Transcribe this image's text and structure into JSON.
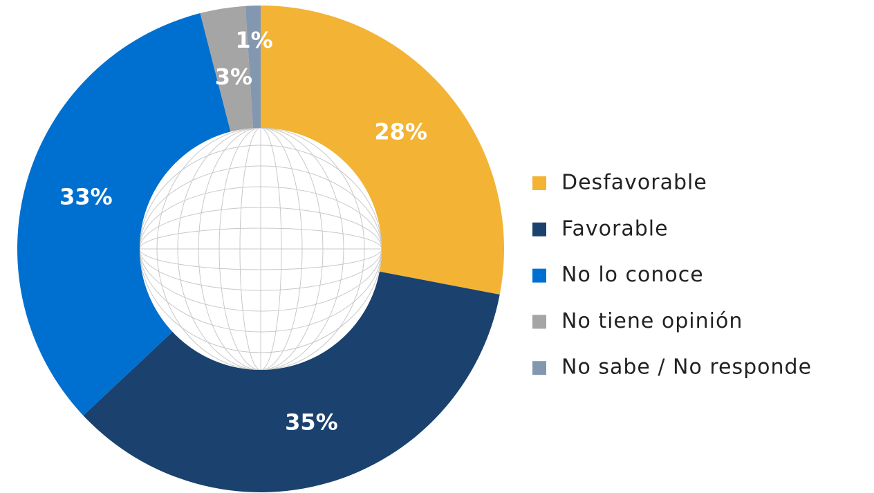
{
  "chart_data": {
    "type": "donut",
    "categories": [
      "Desfavorable",
      "Favorable",
      "No lo conoce",
      "No tiene opinión",
      "No sabe / No responde"
    ],
    "values": [
      28,
      35,
      33,
      3,
      1
    ],
    "value_labels": [
      "28%",
      "35%",
      "33%",
      "3%",
      "1%"
    ],
    "colors": [
      "#F3B335",
      "#1B426E",
      "#0070D0",
      "#A5A5A5",
      "#8497B0"
    ],
    "legend": "right"
  }
}
